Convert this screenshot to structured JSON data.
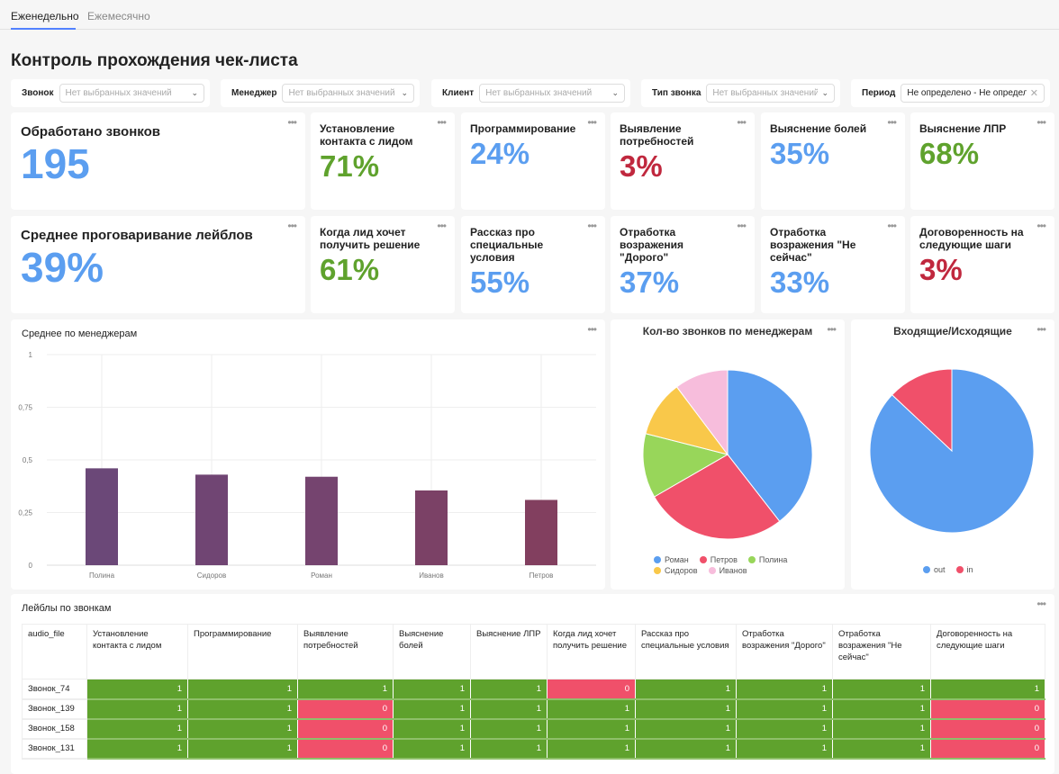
{
  "tabs": [
    {
      "label": "Еженедельно",
      "active": true
    },
    {
      "label": "Ежемесячно",
      "active": false
    }
  ],
  "page_title": "Контроль прохождения чек-листа",
  "filters": [
    {
      "label": "Звонок",
      "placeholder": "Нет выбранных значений",
      "icon": "chevron-down-icon"
    },
    {
      "label": "Менеджер",
      "placeholder": "Нет выбранных значений",
      "icon": "chevron-down-icon"
    },
    {
      "label": "Клиент",
      "placeholder": "Нет выбранных значений",
      "icon": "chevron-down-icon"
    },
    {
      "label": "Тип звонка",
      "placeholder": "Нет выбранных значений",
      "icon": "chevron-down-icon"
    },
    {
      "label": "Период",
      "value": "Не определено - Не определен",
      "icon": "clear-icon"
    }
  ],
  "colors": {
    "blue": "#5b9ef0",
    "green": "#5fa22d",
    "red": "#c0283e",
    "cell_green": "#5fa22d",
    "cell_red": "#f0506a"
  },
  "kpis": [
    {
      "title": "Обработано звонков",
      "value": "195",
      "color": "blue"
    },
    {
      "title": "Установление контакта с лидом",
      "value": "71%",
      "color": "green"
    },
    {
      "title": "Программирование",
      "value": "24%",
      "color": "blue"
    },
    {
      "title": "Выявление потребностей",
      "value": "3%",
      "color": "red"
    },
    {
      "title": "Выяснение болей",
      "value": "35%",
      "color": "blue"
    },
    {
      "title": "Выяснение ЛПР",
      "value": "68%",
      "color": "green"
    },
    {
      "title": "Среднее проговаривание лейблов",
      "value": "39%",
      "color": "blue"
    },
    {
      "title": "Когда лид хочет получить решение",
      "value": "61%",
      "color": "green"
    },
    {
      "title": "Рассказ про специальные условия",
      "value": "55%",
      "color": "blue"
    },
    {
      "title": "Отработка возражения \"Дорого\"",
      "value": "37%",
      "color": "blue"
    },
    {
      "title": "Отработка возражения \"Не сейчас\"",
      "value": "33%",
      "color": "blue"
    },
    {
      "title": "Договоренность на следующие шаги",
      "value": "3%",
      "color": "red"
    }
  ],
  "chart_data": [
    {
      "type": "bar",
      "title": "Среднее по менеджерам",
      "categories": [
        "Полина",
        "Сидоров",
        "Роман",
        "Иванов",
        "Петров"
      ],
      "values": [
        0.46,
        0.43,
        0.42,
        0.355,
        0.31
      ],
      "ylim": [
        0,
        1
      ],
      "yticks": [
        "0",
        "0,25",
        "0,5",
        "0,75",
        "1"
      ],
      "grid": true,
      "colors": [
        "#6b4878",
        "#704573",
        "#75446f",
        "#7b4166",
        "#823f5f"
      ]
    },
    {
      "type": "pie",
      "title": "Кол-во звонков по менеджерам",
      "labels": [
        "Роман",
        "Петров",
        "Полина",
        "Сидоров",
        "Иванов"
      ],
      "values": [
        77,
        53,
        24,
        21,
        20
      ],
      "colors": [
        "#5b9ef0",
        "#f0506a",
        "#98d65a",
        "#f9c84a",
        "#f7bddc"
      ],
      "legend": "bottom"
    },
    {
      "type": "pie",
      "title": "Входящие/Исходящие",
      "labels": [
        "out",
        "in"
      ],
      "values": [
        87,
        13
      ],
      "colors": [
        "#5b9ef0",
        "#f0506a"
      ],
      "legend": "bottom"
    }
  ],
  "table": {
    "title": "Лейблы по звонкам",
    "columns": [
      "audio_file",
      "Установление контакта с лидом",
      "Программирование",
      "Выявление потребностей",
      "Выяснение болей",
      "Выяснение ЛПР",
      "Когда лид хочет получить решение",
      "Рассказ про специальные условия",
      "Отработка возражения \"Дорого\"",
      "Отработка возражения \"Не сейчас\"",
      "Договоренность на следующие шаги"
    ],
    "rows": [
      [
        "Звонок_74",
        "1",
        "1",
        "1",
        "1",
        "1",
        "0",
        "1",
        "1",
        "1",
        "1"
      ],
      [
        "Звонок_139",
        "1",
        "1",
        "0",
        "1",
        "1",
        "1",
        "1",
        "1",
        "1",
        "0"
      ],
      [
        "Звонок_158",
        "1",
        "1",
        "0",
        "1",
        "1",
        "1",
        "1",
        "1",
        "1",
        "0"
      ],
      [
        "Звонок_131",
        "1",
        "1",
        "0",
        "1",
        "1",
        "1",
        "1",
        "1",
        "1",
        "0"
      ]
    ]
  }
}
